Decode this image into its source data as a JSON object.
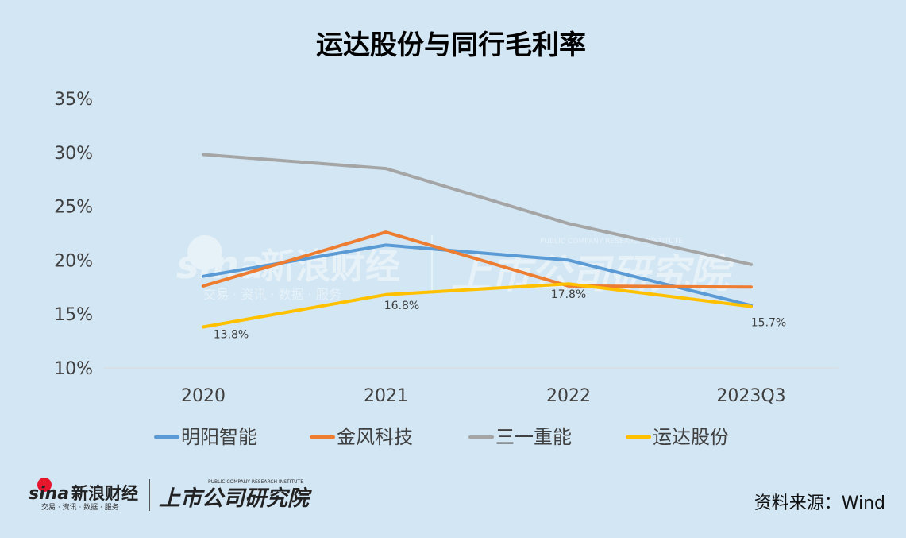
{
  "chart_data": {
    "type": "line",
    "title": "运达股份与同行毛利率",
    "categories": [
      "2020",
      "2021",
      "2022",
      "2023Q3"
    ],
    "yticks": [
      "10%",
      "15%",
      "20%",
      "25%",
      "30%",
      "35%"
    ],
    "ylim": [
      10,
      35
    ],
    "grid": false,
    "legend_position": "bottom",
    "series": [
      {
        "name": "明阳智能",
        "color": "#5b9bd5",
        "values": [
          18.5,
          21.4,
          20.0,
          15.8
        ]
      },
      {
        "name": "金风科技",
        "color": "#ed7d31",
        "values": [
          17.6,
          22.6,
          17.6,
          17.5
        ]
      },
      {
        "name": "三一重能",
        "color": "#a5a5a5",
        "values": [
          29.8,
          28.5,
          23.4,
          19.6
        ]
      },
      {
        "name": "运达股份",
        "color": "#ffc000",
        "values": [
          13.8,
          16.8,
          17.8,
          15.7
        ]
      }
    ],
    "data_labels": [
      "13.8%",
      "16.8%",
      "17.8%",
      "15.7%"
    ]
  },
  "watermark": {
    "sina_word": "sina",
    "sina_cn": "新浪财经",
    "sina_tagline": "交易 · 资讯 · 数据 · 服务",
    "institute": "上市公司研究院",
    "institute_en": "PUBLIC COMPANY RESEARCH INSTITUTE"
  },
  "footer": {
    "source": "资料来源：Wind"
  }
}
